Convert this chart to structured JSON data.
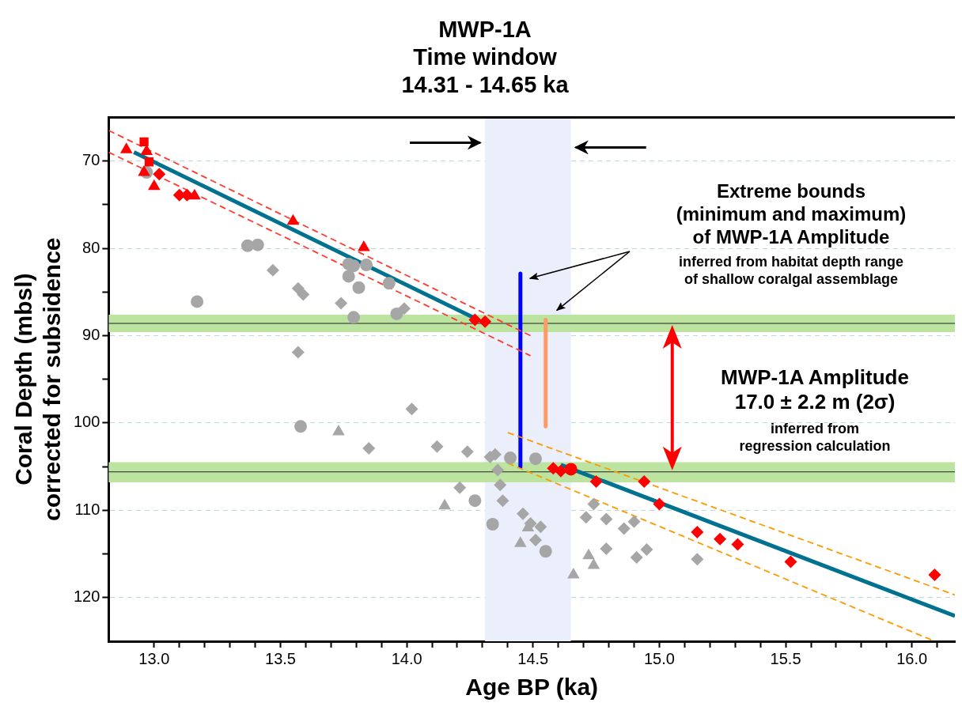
{
  "chart_data": {
    "type": "scatter",
    "title": "MWP-1A\nTime window\n14.31 - 14.65 ka",
    "xlabel": "Age BP (ka)",
    "ylabel": "Coral Depth (mbsl)\ncorrected for subsidence",
    "xlim": [
      12.82,
      16.17
    ],
    "ylim": [
      125,
      65
    ],
    "xticks": [
      {
        "value": 13,
        "label": "13.0"
      },
      {
        "value": 13.1,
        "label": null
      },
      {
        "value": 13.2,
        "label": null
      },
      {
        "value": 13.3,
        "label": null
      },
      {
        "value": 13.4,
        "label": null
      },
      {
        "value": 13.5,
        "label": "13.5"
      },
      {
        "value": 13.6,
        "label": null
      },
      {
        "value": 13.7,
        "label": null
      },
      {
        "value": 13.8,
        "label": null
      },
      {
        "value": 13.9,
        "label": null
      },
      {
        "value": 14,
        "label": "14.0"
      },
      {
        "value": 14.1,
        "label": null
      },
      {
        "value": 14.2,
        "label": null
      },
      {
        "value": 14.3,
        "label": null
      },
      {
        "value": 14.4,
        "label": null
      },
      {
        "value": 14.5,
        "label": "14.5"
      },
      {
        "value": 14.6,
        "label": null
      },
      {
        "value": 14.7,
        "label": null
      },
      {
        "value": 14.8,
        "label": null
      },
      {
        "value": 14.9,
        "label": null
      },
      {
        "value": 15,
        "label": "15.0"
      },
      {
        "value": 15.1,
        "label": null
      },
      {
        "value": 15.2,
        "label": null
      },
      {
        "value": 15.3,
        "label": null
      },
      {
        "value": 15.4,
        "label": null
      },
      {
        "value": 15.5,
        "label": "15.5"
      },
      {
        "value": 15.6,
        "label": null
      },
      {
        "value": 15.7,
        "label": null
      },
      {
        "value": 15.8,
        "label": null
      },
      {
        "value": 15.9,
        "label": null
      },
      {
        "value": 16,
        "label": "16.0"
      },
      {
        "value": 16.1,
        "label": null
      }
    ],
    "yticks": [
      70,
      {
        "value": 75,
        "label": null
      },
      80,
      {
        "value": 85,
        "label": null
      },
      90,
      {
        "value": 95,
        "label": null
      },
      100,
      {
        "value": 105,
        "label": null
      },
      110,
      {
        "value": 115,
        "label": null
      },
      120
    ],
    "grid": "y",
    "legend": false,
    "series": [
      {
        "type": "scatter",
        "marker": "triangle",
        "color": "#ff0000",
        "x": [
          12.89,
          12.97,
          12.96,
          13.0,
          13.16,
          13.55,
          13.83
        ],
        "values": [
          68.7,
          68.9,
          71.3,
          72.9,
          74.0,
          76.9,
          79.9
        ]
      },
      {
        "type": "scatter",
        "marker": "square",
        "color": "#ff0000",
        "x": [
          12.96,
          12.98
        ],
        "values": [
          67.8,
          70.1
        ]
      },
      {
        "type": "scatter",
        "marker": "diamond",
        "color": "#ff0000",
        "x": [
          13.02,
          13.1,
          13.13,
          14.27,
          14.31,
          14.58,
          14.61,
          14.75,
          14.94,
          15.0,
          15.15,
          15.24,
          15.31,
          15.52,
          16.09
        ],
        "values": [
          71.5,
          73.9,
          73.9,
          88.2,
          88.4,
          105.2,
          105.5,
          106.7,
          106.7,
          109.3,
          112.5,
          113.3,
          113.9,
          115.9,
          117.4
        ]
      },
      {
        "type": "scatter",
        "marker": "circle",
        "color": "#ff0000",
        "x": [
          14.65
        ],
        "values": [
          105.3
        ]
      },
      {
        "type": "scatter",
        "marker": "circle",
        "color": "#a6a6a6",
        "x": [
          12.97,
          13.17,
          13.37,
          13.41,
          13.77,
          13.79,
          13.84,
          13.77,
          13.81,
          13.79,
          13.93,
          13.96,
          13.58,
          14.27,
          14.34,
          14.41,
          14.51,
          14.55
        ],
        "values": [
          71.3,
          86.1,
          79.7,
          79.6,
          81.8,
          82.0,
          81.9,
          83.2,
          84.5,
          87.9,
          84.0,
          87.5,
          100.4,
          108.9,
          111.6,
          104.0,
          104.1,
          114.7
        ]
      },
      {
        "type": "scatter",
        "marker": "diamond",
        "color": "#a6a6a6",
        "x": [
          13.47,
          13.57,
          13.59,
          13.74,
          13.99,
          13.57,
          14.02,
          13.85,
          14.12,
          14.24,
          14.33,
          14.35,
          14.36,
          14.37,
          14.21,
          14.38,
          14.46,
          14.49,
          14.53,
          14.51,
          14.74,
          14.71,
          14.79,
          14.86,
          14.9,
          14.79,
          14.91,
          14.95,
          15.15
        ],
        "values": [
          82.5,
          84.6,
          85.3,
          86.3,
          86.9,
          91.9,
          98.4,
          102.9,
          102.7,
          103.3,
          103.9,
          103.6,
          105.4,
          107.1,
          107.4,
          108.9,
          110.4,
          111.5,
          111.9,
          113.4,
          109.3,
          110.8,
          111.0,
          112.1,
          111.3,
          114.4,
          115.4,
          114.5,
          115.6
        ]
      },
      {
        "type": "scatter",
        "marker": "triangle",
        "color": "#a6a6a6",
        "x": [
          13.73,
          14.15,
          14.48,
          14.45,
          14.66,
          14.72,
          14.74
        ],
        "values": [
          101.0,
          109.5,
          112.0,
          113.8,
          117.4,
          115.2,
          116.3
        ]
      },
      {
        "type": "line",
        "marker": "none",
        "line_style": "solid",
        "color": "#00728f",
        "x": [
          12.92,
          14.27
        ],
        "values": [
          69.0,
          88.0
        ]
      },
      {
        "type": "line",
        "marker": "none",
        "line_style": "solid",
        "color": "#00728f",
        "x": [
          14.61,
          16.17
        ],
        "values": [
          104.8,
          122.1
        ]
      },
      {
        "type": "line",
        "marker": "none",
        "line_style": "dashed",
        "color": "#ff3b30",
        "x": [
          12.82,
          14.49
        ],
        "values": [
          66.5,
          90.0
        ]
      },
      {
        "type": "line",
        "marker": "none",
        "line_style": "dashed",
        "color": "#ff3b30",
        "x": [
          12.82,
          14.49
        ],
        "values": [
          69.0,
          92.3
        ]
      },
      {
        "type": "line",
        "marker": "none",
        "line_style": "dashed",
        "color": "#ff9900",
        "x": [
          14.4,
          16.17
        ],
        "values": [
          101.1,
          119.7
        ]
      },
      {
        "type": "line",
        "marker": "none",
        "line_style": "dashed",
        "color": "#ff9900",
        "x": [
          14.4,
          16.09
        ],
        "values": [
          104.6,
          125.0
        ]
      },
      {
        "type": "line",
        "marker": "none",
        "line_style": "solid",
        "color": "#0000ff",
        "x": [
          14.45,
          14.45
        ],
        "values": [
          82.9,
          105.0
        ]
      },
      {
        "type": "line",
        "marker": "none",
        "line_style": "solid",
        "color": "#ff9966",
        "x": [
          14.55,
          14.55
        ],
        "values": [
          88.2,
          100.4
        ]
      }
    ],
    "bands": [
      {
        "axis": "x",
        "from": 14.31,
        "to": 14.65,
        "color": "#eaeffb"
      },
      {
        "axis": "y",
        "from": 87.6,
        "to": 89.6,
        "color": "#bde3a0"
      },
      {
        "axis": "y",
        "from": 104.5,
        "to": 106.8,
        "color": "#bde3a0"
      }
    ],
    "ref_lines": [
      {
        "axis": "y",
        "value": 88.6,
        "color": "#222222"
      },
      {
        "axis": "y",
        "value": 105.6,
        "color": "#222222"
      }
    ],
    "annotations": [
      "Extreme bounds\n(minimum and maximum)\nof MWP-1A Amplitude",
      "inferred from habitat depth range\nof shallow coralgal assemblage",
      "MWP-1A Amplitude\n17.0 ± 2.2 m (2σ)",
      "inferred from\nregression calculation"
    ]
  }
}
